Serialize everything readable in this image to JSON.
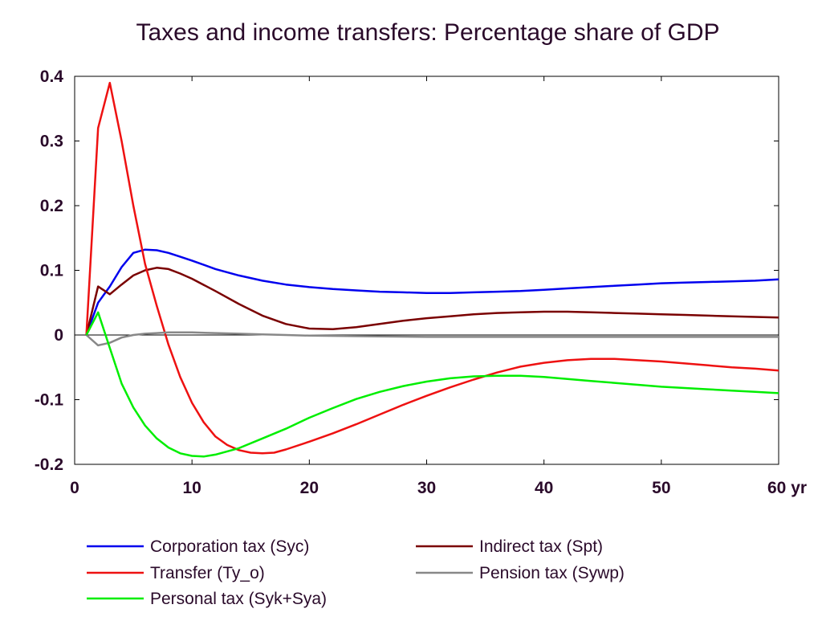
{
  "chart_data": {
    "type": "line",
    "title": "Taxes and income transfers: Percentage share of GDP",
    "xlabel": "",
    "ylabel": "",
    "xlim": [
      0,
      60
    ],
    "ylim": [
      -0.2,
      0.4
    ],
    "x_ticks": [
      {
        "value": 0,
        "label": "0"
      },
      {
        "value": 10,
        "label": "10"
      },
      {
        "value": 20,
        "label": "20"
      },
      {
        "value": 30,
        "label": "30"
      },
      {
        "value": 40,
        "label": "40"
      },
      {
        "value": 50,
        "label": "50"
      },
      {
        "value": 60,
        "label": "60 yr"
      }
    ],
    "y_ticks": [
      {
        "value": 0.4,
        "label": "0.4"
      },
      {
        "value": 0.3,
        "label": "0.3"
      },
      {
        "value": 0.2,
        "label": "0.2"
      },
      {
        "value": 0.1,
        "label": "0.1"
      },
      {
        "value": 0,
        "label": "0"
      },
      {
        "value": -0.1,
        "label": "-0.1"
      },
      {
        "value": -0.2,
        "label": "-0.2"
      }
    ],
    "grid": false,
    "legend_position": "bottom",
    "series": [
      {
        "name": "Corporation tax (Syc)",
        "color": "#0000ee",
        "points": [
          [
            1,
            0
          ],
          [
            2,
            0.05
          ],
          [
            3,
            0.075
          ],
          [
            4,
            0.105
          ],
          [
            5,
            0.127
          ],
          [
            6,
            0.132
          ],
          [
            7,
            0.131
          ],
          [
            8,
            0.127
          ],
          [
            9,
            0.121
          ],
          [
            10,
            0.115
          ],
          [
            12,
            0.102
          ],
          [
            14,
            0.092
          ],
          [
            16,
            0.084
          ],
          [
            18,
            0.078
          ],
          [
            20,
            0.074
          ],
          [
            22,
            0.071
          ],
          [
            24,
            0.069
          ],
          [
            26,
            0.067
          ],
          [
            28,
            0.066
          ],
          [
            30,
            0.065
          ],
          [
            32,
            0.065
          ],
          [
            34,
            0.066
          ],
          [
            36,
            0.067
          ],
          [
            38,
            0.068
          ],
          [
            40,
            0.07
          ],
          [
            42,
            0.072
          ],
          [
            44,
            0.074
          ],
          [
            46,
            0.076
          ],
          [
            48,
            0.078
          ],
          [
            50,
            0.08
          ],
          [
            52,
            0.081
          ],
          [
            54,
            0.082
          ],
          [
            56,
            0.083
          ],
          [
            58,
            0.084
          ],
          [
            60,
            0.086
          ]
        ]
      },
      {
        "name": "Indirect tax (Spt)",
        "color": "#7a0000",
        "points": [
          [
            1,
            0
          ],
          [
            2,
            0.075
          ],
          [
            3,
            0.063
          ],
          [
            4,
            0.078
          ],
          [
            5,
            0.092
          ],
          [
            6,
            0.1
          ],
          [
            7,
            0.104
          ],
          [
            8,
            0.102
          ],
          [
            9,
            0.095
          ],
          [
            10,
            0.087
          ],
          [
            12,
            0.068
          ],
          [
            14,
            0.048
          ],
          [
            16,
            0.03
          ],
          [
            18,
            0.017
          ],
          [
            20,
            0.01
          ],
          [
            22,
            0.009
          ],
          [
            24,
            0.012
          ],
          [
            26,
            0.017
          ],
          [
            28,
            0.022
          ],
          [
            30,
            0.026
          ],
          [
            32,
            0.029
          ],
          [
            34,
            0.032
          ],
          [
            36,
            0.034
          ],
          [
            38,
            0.035
          ],
          [
            40,
            0.036
          ],
          [
            42,
            0.036
          ],
          [
            44,
            0.035
          ],
          [
            46,
            0.034
          ],
          [
            48,
            0.033
          ],
          [
            50,
            0.032
          ],
          [
            52,
            0.031
          ],
          [
            54,
            0.03
          ],
          [
            56,
            0.029
          ],
          [
            58,
            0.028
          ],
          [
            60,
            0.027
          ]
        ]
      },
      {
        "name": "Transfer (Ty_o)",
        "color": "#ee1111",
        "points": [
          [
            1,
            0
          ],
          [
            2,
            0.32
          ],
          [
            3,
            0.39
          ],
          [
            4,
            0.3
          ],
          [
            5,
            0.2
          ],
          [
            6,
            0.11
          ],
          [
            7,
            0.045
          ],
          [
            8,
            -0.015
          ],
          [
            9,
            -0.065
          ],
          [
            10,
            -0.105
          ],
          [
            11,
            -0.135
          ],
          [
            12,
            -0.157
          ],
          [
            13,
            -0.17
          ],
          [
            14,
            -0.178
          ],
          [
            15,
            -0.182
          ],
          [
            16,
            -0.183
          ],
          [
            17,
            -0.182
          ],
          [
            18,
            -0.177
          ],
          [
            20,
            -0.165
          ],
          [
            22,
            -0.152
          ],
          [
            24,
            -0.138
          ],
          [
            26,
            -0.123
          ],
          [
            28,
            -0.108
          ],
          [
            30,
            -0.094
          ],
          [
            32,
            -0.081
          ],
          [
            34,
            -0.069
          ],
          [
            36,
            -0.058
          ],
          [
            38,
            -0.049
          ],
          [
            40,
            -0.043
          ],
          [
            42,
            -0.039
          ],
          [
            44,
            -0.037
          ],
          [
            46,
            -0.037
          ],
          [
            48,
            -0.039
          ],
          [
            50,
            -0.041
          ],
          [
            52,
            -0.044
          ],
          [
            54,
            -0.047
          ],
          [
            56,
            -0.05
          ],
          [
            58,
            -0.052
          ],
          [
            60,
            -0.055
          ]
        ]
      },
      {
        "name": "Pension tax (Sywp)",
        "color": "#888888",
        "points": [
          [
            1,
            0
          ],
          [
            2,
            -0.016
          ],
          [
            3,
            -0.012
          ],
          [
            4,
            -0.004
          ],
          [
            5,
            0
          ],
          [
            6,
            0.002
          ],
          [
            7,
            0.003
          ],
          [
            8,
            0.004
          ],
          [
            10,
            0.004
          ],
          [
            12,
            0.003
          ],
          [
            14,
            0.002
          ],
          [
            16,
            0.001
          ],
          [
            18,
            0
          ],
          [
            20,
            -0.001
          ],
          [
            25,
            -0.002
          ],
          [
            30,
            -0.003
          ],
          [
            40,
            -0.003
          ],
          [
            50,
            -0.003
          ],
          [
            60,
            -0.003
          ]
        ]
      },
      {
        "name": "Personal tax (Syk+Sya)",
        "color": "#00ee00",
        "points": [
          [
            1,
            0
          ],
          [
            2,
            0.035
          ],
          [
            3,
            -0.02
          ],
          [
            4,
            -0.075
          ],
          [
            5,
            -0.112
          ],
          [
            6,
            -0.14
          ],
          [
            7,
            -0.16
          ],
          [
            8,
            -0.174
          ],
          [
            9,
            -0.183
          ],
          [
            10,
            -0.187
          ],
          [
            11,
            -0.188
          ],
          [
            12,
            -0.185
          ],
          [
            14,
            -0.175
          ],
          [
            16,
            -0.16
          ],
          [
            18,
            -0.145
          ],
          [
            20,
            -0.128
          ],
          [
            22,
            -0.113
          ],
          [
            24,
            -0.099
          ],
          [
            26,
            -0.088
          ],
          [
            28,
            -0.079
          ],
          [
            30,
            -0.072
          ],
          [
            32,
            -0.067
          ],
          [
            34,
            -0.064
          ],
          [
            36,
            -0.063
          ],
          [
            38,
            -0.063
          ],
          [
            40,
            -0.065
          ],
          [
            42,
            -0.068
          ],
          [
            44,
            -0.071
          ],
          [
            46,
            -0.074
          ],
          [
            48,
            -0.077
          ],
          [
            50,
            -0.08
          ],
          [
            52,
            -0.082
          ],
          [
            54,
            -0.084
          ],
          [
            56,
            -0.086
          ],
          [
            58,
            -0.088
          ],
          [
            60,
            -0.09
          ]
        ]
      }
    ]
  }
}
